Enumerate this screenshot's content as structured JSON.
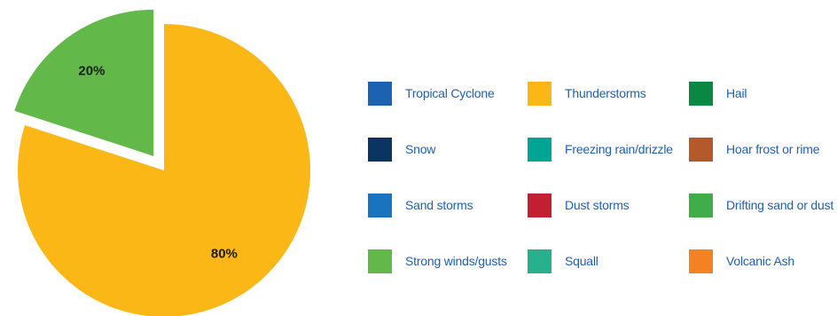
{
  "chart_data": {
    "type": "pie",
    "title": "",
    "slices": [
      {
        "label": "Thunderstorms",
        "value": 80,
        "display": "80%",
        "color": "#fbb716"
      },
      {
        "label": "Strong winds/gusts",
        "value": 20,
        "display": "20%",
        "color": "#62b848"
      }
    ],
    "legend_placement": "right",
    "legend": [
      {
        "label": "Tropical Cyclone",
        "color": "#1b62b2"
      },
      {
        "label": "Thunderstorms",
        "color": "#fbb716"
      },
      {
        "label": "Hail",
        "color": "#0a8743"
      },
      {
        "label": "Snow",
        "color": "#0a3461"
      },
      {
        "label": "Freezing rain/drizzle",
        "color": "#00a593"
      },
      {
        "label": "Hoar frost or rime",
        "color": "#b45a2a"
      },
      {
        "label": "Sand storms",
        "color": "#1a73be"
      },
      {
        "label": "Dust storms",
        "color": "#c21f32"
      },
      {
        "label": "Drifting sand or dust",
        "color": "#41ad4a"
      },
      {
        "label": "Strong winds/gusts",
        "color": "#62b848"
      },
      {
        "label": "Squall",
        "color": "#27b08c"
      },
      {
        "label": "Volcanic Ash",
        "color": "#f58220"
      }
    ]
  }
}
